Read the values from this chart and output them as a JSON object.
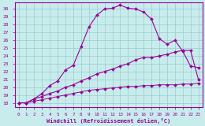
{
  "xlabel": "Windchill (Refroidissement éolien,°C)",
  "bg_color": "#c8ecec",
  "line_color": "#990099",
  "grid_color": "#99cccc",
  "ylim": [
    17.5,
    30.8
  ],
  "xlim": [
    -0.5,
    23.5
  ],
  "yticks": [
    18,
    19,
    20,
    21,
    22,
    23,
    24,
    25,
    26,
    27,
    28,
    29,
    30
  ],
  "xticks": [
    0,
    1,
    2,
    3,
    4,
    5,
    6,
    7,
    8,
    9,
    10,
    11,
    12,
    13,
    14,
    15,
    16,
    17,
    18,
    19,
    20,
    21,
    22,
    23
  ],
  "curve1_x": [
    0,
    1,
    2,
    3,
    4,
    5,
    6,
    7,
    8,
    9,
    10,
    11,
    12,
    13,
    14,
    15,
    16,
    17,
    18,
    19,
    20,
    21,
    22,
    23
  ],
  "curve1_y": [
    18.0,
    18.0,
    18.5,
    19.2,
    20.2,
    20.8,
    22.2,
    22.8,
    25.2,
    27.7,
    29.2,
    30.0,
    30.1,
    30.5,
    30.1,
    30.0,
    29.6,
    28.7,
    26.2,
    25.5,
    26.0,
    24.6,
    22.7,
    22.5
  ],
  "curve2_x": [
    0,
    1,
    2,
    3,
    4,
    5,
    6,
    7,
    8,
    9,
    10,
    11,
    12,
    13,
    14,
    15,
    16,
    17,
    18,
    19,
    20,
    21,
    22,
    23
  ],
  "curve2_y": [
    18.0,
    18.0,
    18.5,
    18.8,
    19.2,
    19.5,
    20.0,
    20.3,
    20.8,
    21.2,
    21.7,
    22.0,
    22.3,
    22.7,
    23.0,
    23.5,
    23.8,
    23.8,
    24.0,
    24.2,
    24.5,
    24.7,
    24.7,
    21.0
  ],
  "curve3_x": [
    0,
    1,
    2,
    3,
    4,
    5,
    6,
    7,
    8,
    9,
    10,
    11,
    12,
    13,
    14,
    15,
    16,
    17,
    18,
    19,
    20,
    21,
    22,
    23
  ],
  "curve3_y": [
    18.0,
    18.0,
    18.2,
    18.4,
    18.6,
    18.8,
    19.0,
    19.2,
    19.4,
    19.6,
    19.7,
    19.8,
    19.9,
    20.0,
    20.1,
    20.1,
    20.2,
    20.2,
    20.3,
    20.3,
    20.3,
    20.4,
    20.4,
    20.5
  ]
}
